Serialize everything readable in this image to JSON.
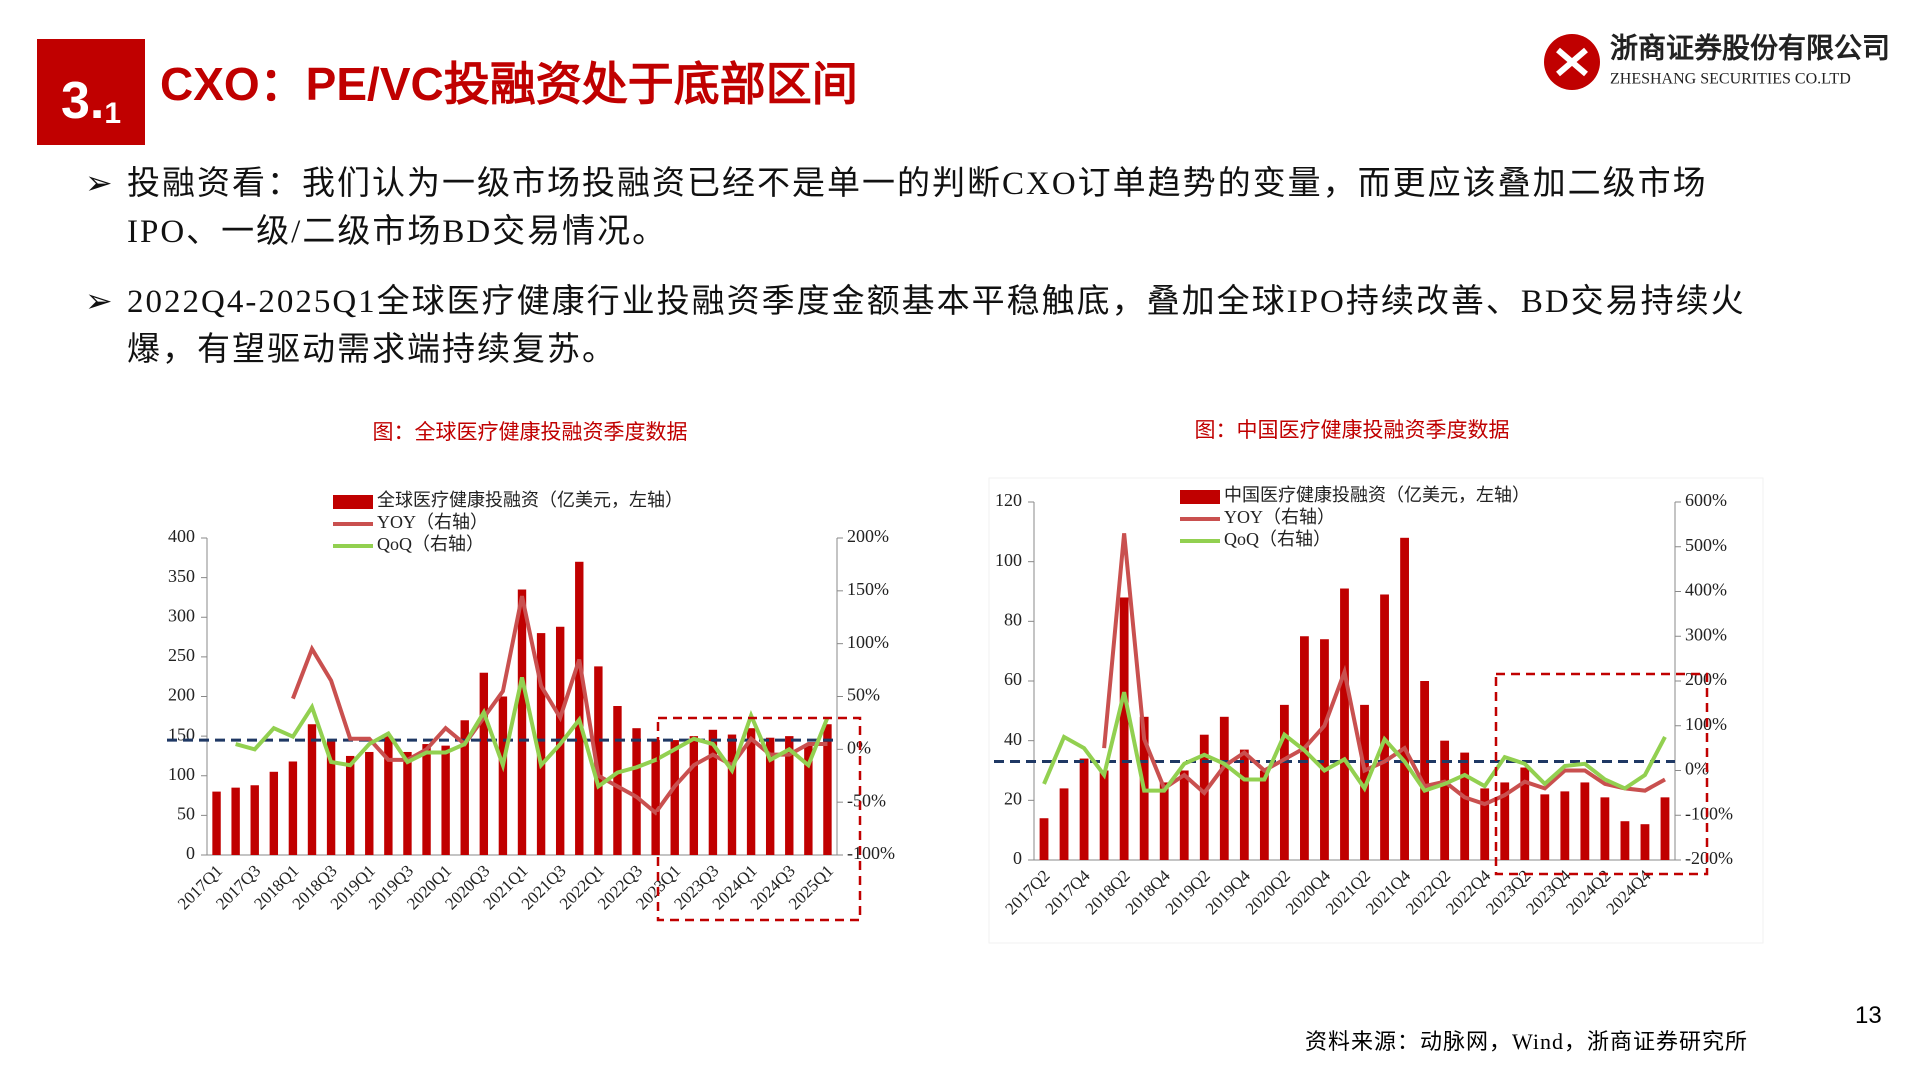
{
  "header": {
    "section_number": "3.",
    "subsection_number": "1",
    "title": "CXO：PE/VC投融资处于底部区间"
  },
  "logo": {
    "name_cn": "浙商证券股份有限公司",
    "name_en": "ZHESHANG SECURITIES CO.LTD"
  },
  "bullets": [
    "投融资看：我们认为一级市场投融资已经不是单一的判断CXO订单趋势的变量，而更应该叠加二级市场IPO、一级/二级市场BD交易情况。",
    "2022Q4-2025Q1全球医疗健康行业投融资季度金额基本平稳触底，叠加全球IPO持续改善、BD交易持续火爆，有望驱动需求端持续复苏。"
  ],
  "chart_data": [
    {
      "type": "bar-line",
      "title": "图：全球医疗健康投融资季度数据",
      "categories": [
        "2017Q1",
        null,
        "2017Q3",
        null,
        "2018Q1",
        null,
        "2018Q3",
        null,
        "2019Q1",
        null,
        "2019Q3",
        null,
        "2020Q1",
        null,
        "2020Q3",
        null,
        "2021Q1",
        null,
        "2021Q3",
        null,
        "2022Q1",
        null,
        "2022Q3",
        null,
        "2023Q1",
        null,
        "2023Q3",
        null,
        "2024Q1",
        null,
        "2024Q3",
        null,
        "2025Q1"
      ],
      "series": [
        {
          "name": "全球医疗健康投融资（亿美元，左轴）",
          "type": "bar",
          "color": "#c00000",
          "values": [
            80,
            85,
            88,
            105,
            118,
            165,
            145,
            125,
            130,
            150,
            130,
            140,
            138,
            170,
            230,
            200,
            335,
            280,
            288,
            370,
            238,
            188,
            160,
            145,
            145,
            150,
            158,
            152,
            160,
            148,
            150,
            140,
            165
          ]
        },
        {
          "name": "YOY（右轴）",
          "type": "line",
          "axis": "y2",
          "color": "#c9504f",
          "values": [
            null,
            null,
            null,
            null,
            48,
            95,
            65,
            10,
            10,
            -10,
            -10,
            0,
            20,
            5,
            30,
            55,
            145,
            60,
            30,
            85,
            -25,
            -35,
            -45,
            -60,
            -35,
            -15,
            -5,
            -15,
            10,
            -5,
            -5,
            5,
            5
          ]
        },
        {
          "name": "QoQ（右轴）",
          "type": "line",
          "axis": "y2",
          "color": "#92d050",
          "values": [
            null,
            5,
            0,
            20,
            12,
            40,
            -12,
            -15,
            5,
            15,
            -12,
            -3,
            -3,
            5,
            35,
            -15,
            68,
            -15,
            5,
            28,
            -35,
            -22,
            -17,
            -10,
            0,
            10,
            5,
            -20,
            32,
            -10,
            0,
            -15,
            30
          ]
        }
      ],
      "reference_line": 145,
      "ylim": [
        0,
        400
      ],
      "yticks": [
        0,
        50,
        100,
        150,
        200,
        250,
        300,
        350,
        400
      ],
      "y2lim": [
        -100,
        200
      ],
      "y2ticks": [
        {
          "value": -100,
          "label": "-100%"
        },
        {
          "value": -50,
          "label": "-50%"
        },
        {
          "value": 0,
          "label": "0%"
        },
        {
          "value": 50,
          "label": "50%"
        },
        {
          "value": 100,
          "label": "100%"
        },
        {
          "value": 150,
          "label": "150%"
        },
        {
          "value": 200,
          "label": "200%"
        }
      ]
    },
    {
      "type": "bar-line",
      "title": "图：中国医疗健康投融资季度数据",
      "categories": [
        "2017Q2",
        null,
        "2017Q4",
        null,
        "2018Q2",
        null,
        "2018Q4",
        null,
        "2019Q2",
        null,
        "2019Q4",
        null,
        "2020Q2",
        null,
        "2020Q4",
        null,
        "2021Q2",
        null,
        "2021Q4",
        null,
        "2022Q2",
        null,
        "2022Q4",
        null,
        "2023Q2",
        null,
        "2023Q4",
        null,
        "2024Q2",
        null,
        "2024Q4",
        null
      ],
      "series": [
        {
          "name": "中国医疗健康投融资（亿美元，左轴）",
          "type": "bar",
          "color": "#c00000",
          "values": [
            14,
            24,
            34,
            30,
            88,
            48,
            26,
            30,
            42,
            48,
            37,
            30,
            52,
            75,
            74,
            91,
            52,
            89,
            108,
            60,
            40,
            36,
            24,
            26,
            31,
            22,
            23,
            26,
            21,
            13,
            12,
            21
          ]
        },
        {
          "name": "YOY（右轴）",
          "type": "line",
          "axis": "y2",
          "color": "#c9504f",
          "values": [
            null,
            null,
            null,
            50,
            530,
            70,
            -40,
            -10,
            -50,
            10,
            40,
            0,
            25,
            50,
            100,
            220,
            0,
            20,
            50,
            -35,
            -25,
            -60,
            -75,
            -55,
            -25,
            -40,
            0,
            0,
            -30,
            -40,
            -45,
            -20
          ]
        },
        {
          "name": "QoQ（右轴）",
          "type": "line",
          "axis": "y2",
          "color": "#92d050",
          "values": [
            -30,
            75,
            50,
            -10,
            175,
            -45,
            -45,
            15,
            35,
            15,
            -20,
            -20,
            80,
            45,
            0,
            25,
            -40,
            70,
            20,
            -45,
            -30,
            -10,
            -35,
            30,
            15,
            -30,
            10,
            15,
            -20,
            -40,
            -10,
            75
          ]
        }
      ],
      "reference_line": 33,
      "ylim": [
        0,
        120
      ],
      "yticks": [
        0,
        20,
        40,
        60,
        80,
        100,
        120
      ],
      "y2lim": [
        -200,
        600
      ],
      "y2ticks": [
        {
          "value": -200,
          "label": "-200%"
        },
        {
          "value": -100,
          "label": "-100%"
        },
        {
          "value": 0,
          "label": "0%"
        },
        {
          "value": 100,
          "label": "100%"
        },
        {
          "value": 200,
          "label": "200%"
        },
        {
          "value": 300,
          "label": "300%"
        },
        {
          "value": 400,
          "label": "400%"
        },
        {
          "value": 500,
          "label": "500%"
        },
        {
          "value": 600,
          "label": "600%"
        }
      ]
    }
  ],
  "source": "资料来源：动脉网，Wind，浙商证券研究所",
  "page_number": 13
}
